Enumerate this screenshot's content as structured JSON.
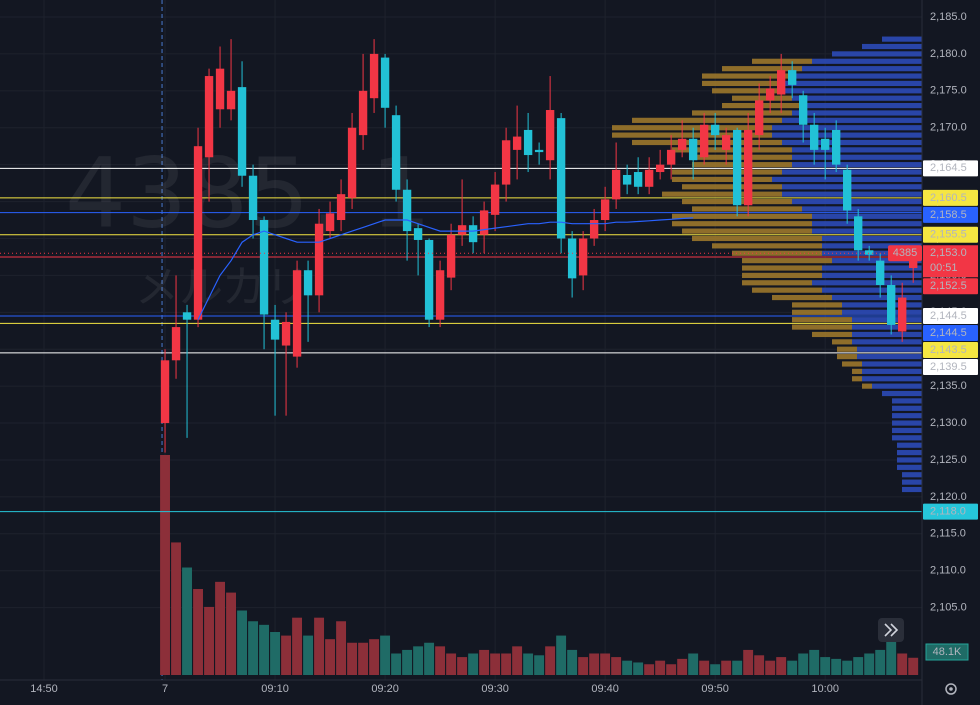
{
  "chart_data": {
    "type": "candlestick",
    "watermark_title": "4385, 1",
    "watermark_subtitle": "メルカリ",
    "x": [
      0,
      1,
      2,
      3,
      4,
      5,
      6,
      7,
      8,
      9,
      10,
      11,
      12,
      13,
      14,
      15,
      16,
      17,
      18,
      19,
      20,
      21,
      22,
      23,
      24,
      25,
      26,
      27,
      28,
      29,
      30,
      31,
      32,
      33,
      34,
      35,
      36,
      37,
      38,
      39,
      40,
      41,
      42,
      43,
      44,
      45,
      46,
      47,
      48,
      49,
      50,
      51,
      52,
      53,
      54,
      55,
      56,
      57,
      58,
      59,
      60,
      61,
      62,
      63,
      64,
      65,
      66,
      67,
      68
    ],
    "open": [
      2130,
      2138.5,
      2145,
      2144,
      2166,
      2172.5,
      2172.5,
      2175.5,
      2163.5,
      2157.5,
      2144,
      2140.5,
      2139,
      2150.7,
      2147.3,
      2156,
      2157.5,
      2160.5,
      2169,
      2174,
      2179.5,
      2171.7,
      2161.6,
      2156.4,
      2154.8,
      2144,
      2149.7,
      2155.5,
      2156.8,
      2155.5,
      2158.2,
      2162.3,
      2167,
      2169.7,
      2167,
      2165.6,
      2171.3,
      2155,
      2150,
      2155,
      2157.5,
      2160.3,
      2163.6,
      2164,
      2162,
      2164,
      2165,
      2167,
      2168.5,
      2166,
      2170.4,
      2167,
      2169.7,
      2159.5,
      2169,
      2173.7,
      2174.5,
      2177.8,
      2174.4,
      2170.4,
      2168.5,
      2169.7,
      2164.3,
      2158,
      2153.4,
      2152,
      2148.7,
      2142.4,
      2151
    ],
    "high": [
      2140,
      2150,
      2146,
      2170,
      2178,
      2181,
      2182,
      2179,
      2165,
      2158,
      2146,
      2145,
      2152,
      2152,
      2159,
      2160,
      2163,
      2172,
      2180,
      2182,
      2180,
      2173,
      2163,
      2157,
      2155,
      2152,
      2157,
      2163,
      2158,
      2160,
      2164,
      2170,
      2173,
      2172,
      2168,
      2177,
      2172,
      2156,
      2156,
      2159,
      2162,
      2168,
      2165,
      2166,
      2166,
      2167,
      2169,
      2171,
      2170,
      2172,
      2172,
      2170,
      2170,
      2172,
      2176,
      2177,
      2180,
      2179,
      2175,
      2172,
      2170,
      2171,
      2165,
      2159,
      2154,
      2153,
      2150,
      2149,
      2154
    ],
    "low": [
      2126,
      2136,
      2128,
      2143,
      2160,
      2170,
      2171,
      2162,
      2155,
      2140,
      2131,
      2131,
      2137.5,
      2141,
      2145,
      2155,
      2156,
      2159,
      2167,
      2172,
      2170,
      2160,
      2152,
      2150,
      2143,
      2143,
      2148,
      2154,
      2153,
      2153,
      2156,
      2160,
      2163,
      2164,
      2165,
      2163,
      2153,
      2147,
      2148,
      2154,
      2156,
      2159,
      2161,
      2161,
      2161,
      2163,
      2163,
      2166,
      2163,
      2165,
      2167,
      2165,
      2158,
      2158,
      2167,
      2172,
      2172,
      2174,
      2168,
      2165,
      2163,
      2164,
      2157,
      2152,
      2152,
      2147,
      2142,
      2141,
      2149
    ],
    "close": [
      2138.5,
      2143,
      2144,
      2167.5,
      2177,
      2178,
      2175,
      2163.5,
      2157.5,
      2144.7,
      2141.3,
      2143.7,
      2150.7,
      2147.3,
      2157,
      2158.4,
      2161,
      2170,
      2175,
      2180,
      2172.7,
      2161.6,
      2156,
      2154.8,
      2144,
      2150.7,
      2155.5,
      2156.8,
      2154.5,
      2158.8,
      2162.3,
      2168.3,
      2168.8,
      2166.3,
      2166.7,
      2172.4,
      2155,
      2149.6,
      2155,
      2157.5,
      2160.3,
      2164.3,
      2162.3,
      2162,
      2164.3,
      2165,
      2167,
      2168.5,
      2165.6,
      2170.4,
      2169,
      2169,
      2159.5,
      2169.7,
      2173.7,
      2175.3,
      2177.8,
      2175.8,
      2170.4,
      2167,
      2167,
      2165,
      2158.8,
      2153.4,
      2152.8,
      2148.7,
      2143.3,
      2147,
      2153
    ],
    "volume": [
      614,
      370,
      300,
      240,
      190,
      260,
      230,
      180,
      150,
      140,
      120,
      110,
      160,
      110,
      160,
      100,
      150,
      90,
      90,
      100,
      110,
      60,
      70,
      80,
      90,
      80,
      60,
      50,
      60,
      70,
      60,
      60,
      80,
      60,
      55,
      80,
      110,
      70,
      50,
      60,
      60,
      50,
      40,
      35,
      30,
      40,
      30,
      45,
      60,
      40,
      30,
      40,
      40,
      70,
      55,
      40,
      50,
      40,
      60,
      70,
      50,
      45,
      40,
      50,
      60,
      70,
      100,
      60,
      48.1
    ],
    "volume_label": "48.1K",
    "up_color": "#f23645",
    "down_color": "#22c1d6",
    "ma": {
      "color": "#2962ff",
      "values": [
        null,
        null,
        null,
        2144,
        2147,
        2150,
        2152,
        2154.5,
        2155.5,
        2156,
        2155.5,
        2155,
        2154.5,
        2154.5,
        2154.5,
        2155,
        2155.5,
        2156,
        2156.5,
        2157,
        2157.5,
        2157.5,
        2157.5,
        2157,
        2156.5,
        2156,
        2156,
        2156,
        2156,
        2156.2,
        2156.4,
        2156.6,
        2156.8,
        2157,
        2157,
        2157.2,
        2157.2,
        2157,
        2157,
        2157,
        2157,
        2157.2,
        2157.2,
        2157.3,
        2157.4,
        2157.5,
        2157.6,
        2157.7,
        2157.8,
        null,
        null,
        null,
        null,
        null,
        null,
        null,
        null,
        null,
        null,
        null,
        null,
        null,
        null,
        null,
        null,
        null,
        null,
        null,
        null
      ]
    },
    "volume_profile": {
      "prices": [
        2121,
        2122,
        2123,
        2124,
        2125,
        2126,
        2127,
        2128,
        2129,
        2130,
        2131,
        2132,
        2133,
        2134,
        2135,
        2136,
        2137,
        2138,
        2139,
        2140,
        2141,
        2142,
        2143,
        2144,
        2145,
        2146,
        2147,
        2148,
        2149,
        2150,
        2151,
        2152,
        2153,
        2154,
        2155,
        2156,
        2157,
        2158,
        2159,
        2160,
        2161,
        2162,
        2163,
        2164,
        2165,
        2166,
        2167,
        2168,
        2169,
        2170,
        2171,
        2172,
        2173,
        2174,
        2175,
        2176,
        2177,
        2178,
        2179,
        2180,
        2181,
        2182
      ],
      "blue": {
        "color": "#2e4dbf",
        "values": [
          20,
          20,
          20,
          25,
          25,
          25,
          25,
          30,
          30,
          30,
          30,
          30,
          30,
          40,
          50,
          60,
          60,
          60,
          65,
          65,
          70,
          70,
          70,
          70,
          80,
          80,
          90,
          100,
          110,
          100,
          100,
          90,
          100,
          100,
          100,
          110,
          110,
          110,
          120,
          130,
          140,
          140,
          150,
          140,
          130,
          130,
          130,
          140,
          150,
          150,
          140,
          130,
          120,
          130,
          140,
          140,
          130,
          120,
          110,
          90,
          60,
          40
        ]
      },
      "gold": {
        "color": "#a47c2c",
        "values": [
          0,
          0,
          0,
          0,
          0,
          0,
          0,
          0,
          0,
          0,
          0,
          0,
          0,
          0,
          10,
          10,
          10,
          20,
          20,
          20,
          20,
          40,
          60,
          60,
          50,
          50,
          60,
          70,
          70,
          80,
          80,
          90,
          90,
          110,
          130,
          130,
          140,
          140,
          110,
          110,
          120,
          100,
          100,
          110,
          100,
          100,
          120,
          150,
          160,
          160,
          150,
          100,
          80,
          60,
          70,
          80,
          90,
          80,
          60,
          0,
          0,
          0
        ]
      }
    },
    "xlim": [
      -15,
      68.8
    ],
    "xticks": [
      {
        "value": -11,
        "label": "14:50"
      },
      {
        "value": 0,
        "label": "7"
      },
      {
        "value": 10,
        "label": "09:10"
      },
      {
        "value": 20,
        "label": "09:20"
      },
      {
        "value": 30,
        "label": "09:30"
      },
      {
        "value": 40,
        "label": "09:40"
      },
      {
        "value": 50,
        "label": "09:50"
      },
      {
        "value": 60,
        "label": "10:00"
      }
    ],
    "ylim": [
      2095.2,
      2187.3
    ],
    "yticks": [
      {
        "value": 2185,
        "label": "2,185.0"
      },
      {
        "value": 2180,
        "label": "2,180.0"
      },
      {
        "value": 2175,
        "label": "2,175.0"
      },
      {
        "value": 2170,
        "label": "2,170.0"
      },
      {
        "value": 2165,
        "label": "2,165.0"
      },
      {
        "value": 2160,
        "label": "2,160.0"
      },
      {
        "value": 2155,
        "label": "2,155.0"
      },
      {
        "value": 2150,
        "label": "2,150.0"
      },
      {
        "value": 2145,
        "label": "2,145.0"
      },
      {
        "value": 2140,
        "label": "2,140.0"
      },
      {
        "value": 2135,
        "label": "2,135.0"
      },
      {
        "value": 2130,
        "label": "2,130.0"
      },
      {
        "value": 2125,
        "label": "2,125.0"
      },
      {
        "value": 2120,
        "label": "2,120.0"
      },
      {
        "value": 2115,
        "label": "2,115.0"
      },
      {
        "value": 2110,
        "label": "2,110.0"
      },
      {
        "value": 2105,
        "label": "2,105.0"
      }
    ],
    "grid": true,
    "price_lines": [
      {
        "value": 2164.5,
        "label": "2,164.5",
        "color": "#ffffff",
        "text_color": "#131722"
      },
      {
        "value": 2160.5,
        "label": "2,160.5",
        "color": "#f5e642",
        "text_color": "#131722"
      },
      {
        "value": 2158.5,
        "label": "2,158.5",
        "color": "#2962ff",
        "text_color": "#ffffff"
      },
      {
        "value": 2155.5,
        "label": "2,155.5",
        "color": "#f5e642",
        "text_color": "#131722"
      },
      {
        "value": 2152.5,
        "label": "2,152.5",
        "color": "#f23645",
        "text_color": "#ffffff"
      },
      {
        "value": 2144.5,
        "label": "2,144.5",
        "color": "#ffffff",
        "text_color": "#131722"
      },
      {
        "value": 2144.5,
        "label": "2,144.5",
        "color": "#2962ff",
        "text_color": "#ffffff"
      },
      {
        "value": 2143.5,
        "label": "2,143.5",
        "color": "#f5e642",
        "text_color": "#131722"
      },
      {
        "value": 2139.5,
        "label": "2,139.5",
        "color": "#ffffff",
        "text_color": "#131722"
      },
      {
        "value": 2118,
        "label": "2,118.0",
        "color": "#26c6da",
        "text_color": "#131722"
      }
    ],
    "last_price": {
      "value": 2153,
      "label": "2,153.0",
      "symbol": "4385",
      "countdown": "00:51",
      "color": "#f23645"
    }
  }
}
